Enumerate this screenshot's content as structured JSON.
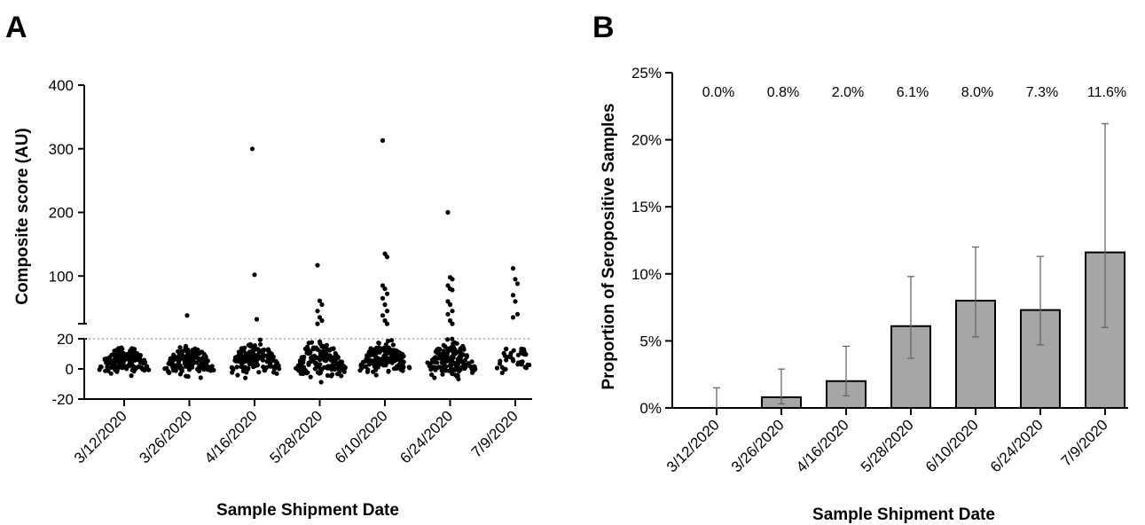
{
  "chart_data": [
    {
      "panel": "A",
      "type": "scatter",
      "xlabel": "Sample Shipment Date",
      "ylabel": "Composite score (AU)",
      "categories": [
        "3/12/2020",
        "3/26/2020",
        "4/16/2020",
        "5/28/2020",
        "6/10/2020",
        "6/24/2020",
        "7/9/2020"
      ],
      "y_axis_lower": {
        "ylim": [
          -20,
          20
        ],
        "ticks": [
          "20",
          "0",
          "-20"
        ]
      },
      "y_axis_upper": {
        "ylim": [
          20,
          400
        ],
        "ticks": [
          "100",
          "200",
          "300",
          "400"
        ]
      },
      "axis_break": true,
      "threshold_line": {
        "style": "dotted"
      },
      "points": [
        {
          "category": "3/12/2020",
          "cluster_range": [
            -8,
            18
          ],
          "outliers": []
        },
        {
          "category": "3/26/2020",
          "cluster_range": [
            -7,
            18
          ],
          "outliers": [
            38
          ]
        },
        {
          "category": "4/16/2020",
          "cluster_range": [
            -8,
            22
          ],
          "outliers": [
            300,
            102,
            32
          ]
        },
        {
          "category": "5/28/2020",
          "cluster_range": [
            -12,
            22
          ],
          "outliers": [
            117,
            61,
            55,
            45,
            35,
            30,
            25
          ]
        },
        {
          "category": "6/10/2020",
          "cluster_range": [
            -8,
            22
          ],
          "outliers": [
            313,
            135,
            130,
            85,
            80,
            72,
            65,
            55,
            45,
            38,
            30,
            25
          ]
        },
        {
          "category": "6/24/2020",
          "cluster_range": [
            -10,
            22
          ],
          "outliers": [
            200,
            98,
            95,
            85,
            80,
            78,
            60,
            55,
            45,
            40,
            30,
            25
          ]
        },
        {
          "category": "7/9/2020",
          "cluster_range": [
            -6,
            18
          ],
          "outliers": [
            112,
            95,
            88,
            70,
            60,
            40,
            35
          ]
        }
      ]
    },
    {
      "panel": "B",
      "type": "bar",
      "xlabel": "Sample Shipment Date",
      "ylabel": "Proportion of Seropositive Samples",
      "categories": [
        "3/12/2020",
        "3/26/2020",
        "4/16/2020",
        "5/28/2020",
        "6/10/2020",
        "6/24/2020",
        "7/9/2020"
      ],
      "values": [
        0.0,
        0.8,
        2.0,
        6.1,
        8.0,
        7.3,
        11.6
      ],
      "value_labels": [
        "0.0%",
        "0.8%",
        "2.0%",
        "6.1%",
        "8.0%",
        "7.3%",
        "11.6%"
      ],
      "error_low": [
        0.0,
        0.3,
        0.9,
        3.7,
        5.3,
        4.7,
        6.0
      ],
      "error_high": [
        1.5,
        2.9,
        4.6,
        9.8,
        12.0,
        11.3,
        21.2
      ],
      "ylim": [
        0,
        25
      ],
      "yticks": [
        "0%",
        "5%",
        "10%",
        "15%",
        "20%",
        "25%"
      ],
      "bar_color": "#a6a6a6"
    }
  ],
  "panel_labels": {
    "a": "A",
    "b": "B"
  }
}
